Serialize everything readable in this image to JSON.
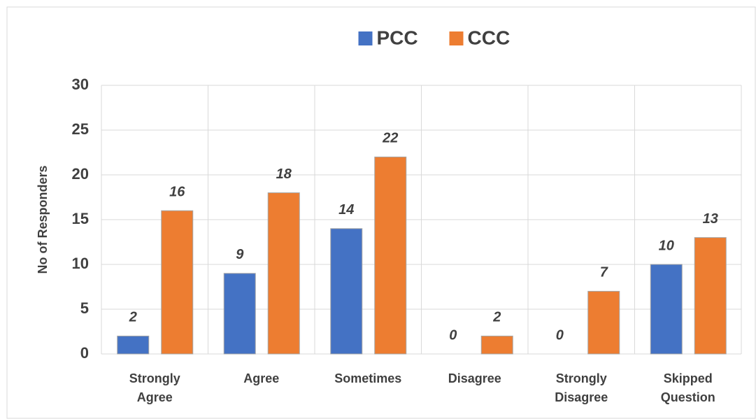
{
  "chart_data": {
    "type": "bar",
    "y_label": "No of Responders",
    "categories": [
      "Strongly Agree",
      "Agree",
      "Sometimes",
      "Disagree",
      "Strongly Disagree",
      "Skipped Question"
    ],
    "series": [
      {
        "name": "PCC",
        "color": "#4472c4",
        "values": [
          2,
          9,
          14,
          0,
          0,
          10
        ]
      },
      {
        "name": "CCC",
        "color": "#ed7d31",
        "values": [
          16,
          18,
          22,
          2,
          7,
          13
        ]
      }
    ],
    "ylim": [
      0,
      30
    ],
    "yticks": [
      0,
      5,
      10,
      15,
      20,
      25,
      30
    ],
    "grid": true,
    "legend": "top"
  }
}
